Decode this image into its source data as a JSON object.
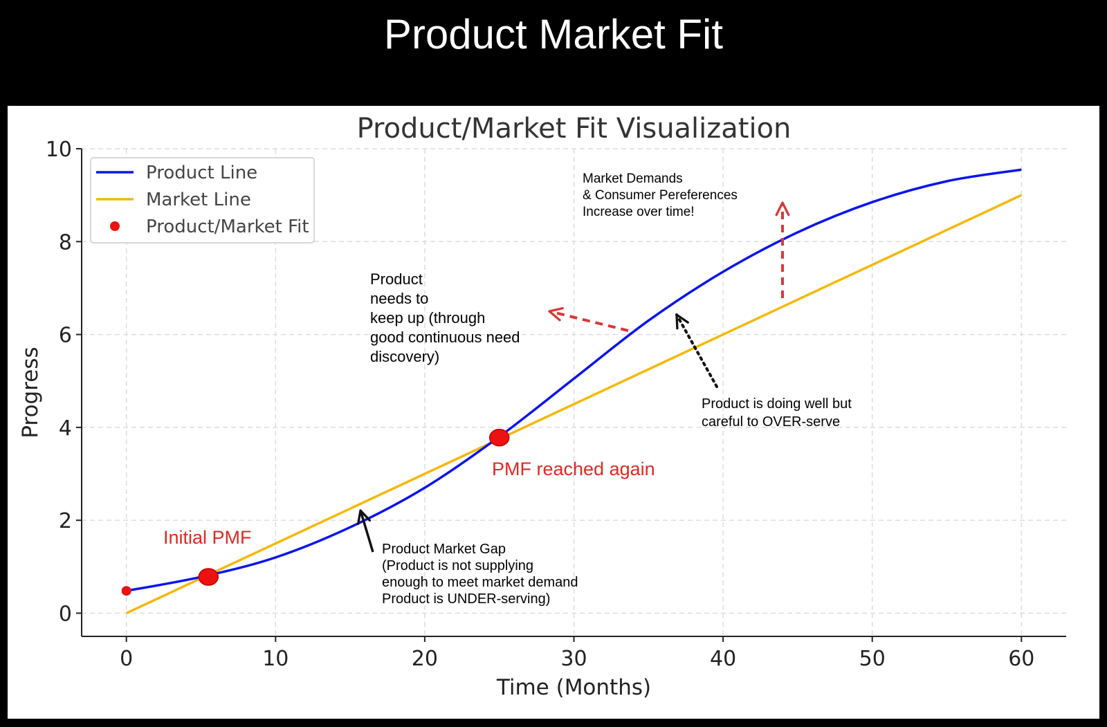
{
  "banner": {
    "title": "Product Market Fit"
  },
  "colors": {
    "product": "#0a14ee",
    "market": "#f5b80b",
    "fit": "#ee1111",
    "accent_text": "#dd2a22",
    "arrow_red": "#d93838",
    "grid": "#dddddd"
  },
  "chart_data": {
    "type": "line",
    "title": "Product/Market Fit Visualization",
    "xlabel": "Time (Months)",
    "ylabel": "Progress",
    "xlim": [
      -3,
      63
    ],
    "ylim": [
      -0.5,
      10
    ],
    "xticks": [
      0,
      10,
      20,
      30,
      40,
      50,
      60
    ],
    "yticks": [
      0,
      2,
      4,
      6,
      8,
      10
    ],
    "grid": true,
    "legend": {
      "placement": "top-left"
    },
    "series": [
      {
        "name": "Product Line",
        "color": "#0a14ee",
        "x": [
          0,
          5,
          10,
          15,
          20,
          25,
          30,
          35,
          40,
          45,
          50,
          55,
          60
        ],
        "y": [
          0.48,
          0.78,
          1.2,
          1.85,
          2.7,
          3.8,
          5.05,
          6.3,
          7.35,
          8.2,
          8.85,
          9.3,
          9.55
        ]
      },
      {
        "name": "Market Line",
        "color": "#f5b80b",
        "x": [
          0,
          60
        ],
        "y": [
          0,
          9
        ]
      },
      {
        "name": "Product/Market Fit",
        "type": "scatter",
        "color": "#ee1111",
        "points": [
          {
            "x": 0,
            "y": 0.48,
            "size": "small"
          },
          {
            "x": 5.5,
            "y": 0.78,
            "size": "large"
          },
          {
            "x": 25,
            "y": 3.78,
            "size": "large"
          }
        ]
      }
    ],
    "annotations": [
      {
        "id": "initial-pmf",
        "text": [
          "Initial PMF"
        ],
        "color": "red"
      },
      {
        "id": "pmf-again",
        "text": [
          "PMF reached again"
        ],
        "color": "red"
      },
      {
        "id": "market-demands",
        "text": [
          "Market Demands",
          "& Consumer Pereferences",
          "Increase over time!"
        ]
      },
      {
        "id": "keep-up",
        "text": [
          "Product",
          "needs to",
          "keep up (through",
          "good continuous need",
          "discovery)"
        ]
      },
      {
        "id": "over-serve",
        "text": [
          "Product is doing well but",
          "careful to OVER-serve"
        ]
      },
      {
        "id": "gap",
        "text": [
          "Product Market Gap",
          "(Product is not supplying",
          "enough to meet market demand",
          "Product is UNDER-serving)"
        ]
      }
    ]
  }
}
